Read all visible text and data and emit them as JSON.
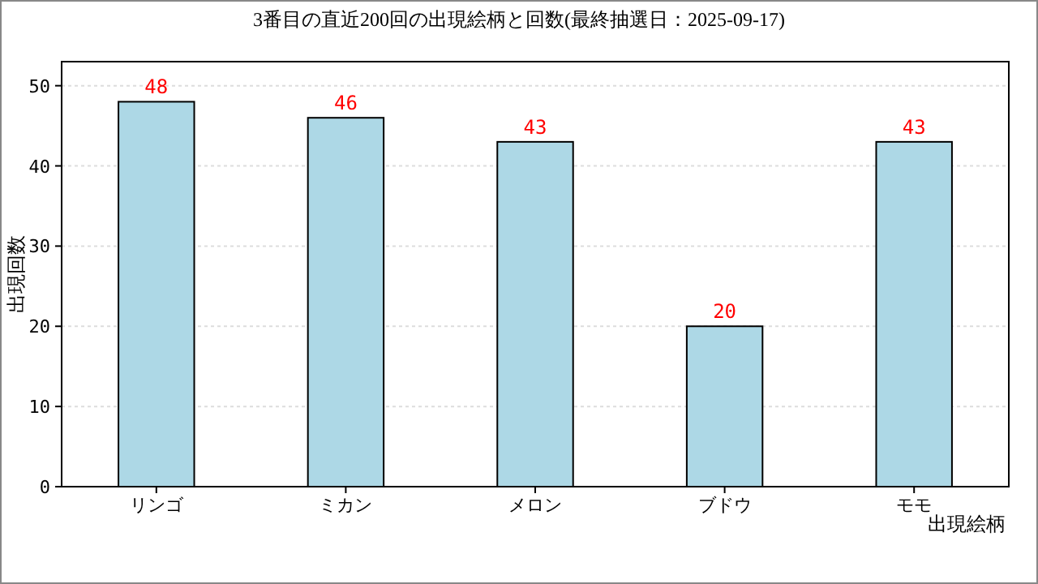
{
  "chart_data": {
    "type": "bar",
    "title": "3番目の直近200回の出現絵柄と回数(最終抽選日：2025-09-17)",
    "xlabel": "出現絵柄",
    "ylabel": "出現回数",
    "categories": [
      "リンゴ",
      "ミカン",
      "メロン",
      "ブドウ",
      "モモ"
    ],
    "values": [
      48,
      46,
      43,
      20,
      43
    ],
    "color": "#add8e6",
    "ylim": [
      0,
      53
    ],
    "yticks": [
      0,
      10,
      20,
      30,
      40,
      50
    ],
    "grid": "y",
    "data_labels": true
  }
}
